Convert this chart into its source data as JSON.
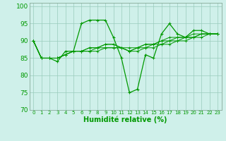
{
  "xlabel": "Humidité relative (%)",
  "xlim": [
    -0.5,
    23.5
  ],
  "ylim": [
    70,
    101
  ],
  "yticks": [
    70,
    75,
    80,
    85,
    90,
    95,
    100
  ],
  "xticks": [
    0,
    1,
    2,
    3,
    4,
    5,
    6,
    7,
    8,
    9,
    10,
    11,
    12,
    13,
    14,
    15,
    16,
    17,
    18,
    19,
    20,
    21,
    22,
    23
  ],
  "background_color": "#cff0ea",
  "grid_color": "#99ccbb",
  "line_color": "#009900",
  "series_volatile": [
    90,
    85,
    85,
    84,
    87,
    87,
    95,
    96,
    96,
    96,
    91,
    85,
    75,
    76,
    86,
    85,
    92,
    95,
    92,
    91,
    93,
    93,
    92,
    92
  ],
  "series_flat": [
    [
      90,
      85,
      85,
      85,
      86,
      87,
      87,
      88,
      88,
      89,
      89,
      88,
      87,
      88,
      89,
      89,
      90,
      91,
      91,
      91,
      92,
      92,
      92,
      92
    ],
    [
      90,
      85,
      85,
      85,
      86,
      87,
      87,
      88,
      88,
      89,
      89,
      88,
      88,
      88,
      89,
      89,
      90,
      90,
      91,
      91,
      91,
      92,
      92,
      92
    ],
    [
      90,
      85,
      85,
      85,
      86,
      87,
      87,
      87,
      88,
      88,
      88,
      88,
      87,
      88,
      88,
      89,
      89,
      90,
      90,
      91,
      91,
      92,
      92,
      92
    ],
    [
      90,
      85,
      85,
      85,
      86,
      87,
      87,
      87,
      87,
      88,
      88,
      88,
      87,
      87,
      88,
      88,
      89,
      89,
      90,
      90,
      91,
      91,
      92,
      92
    ]
  ]
}
